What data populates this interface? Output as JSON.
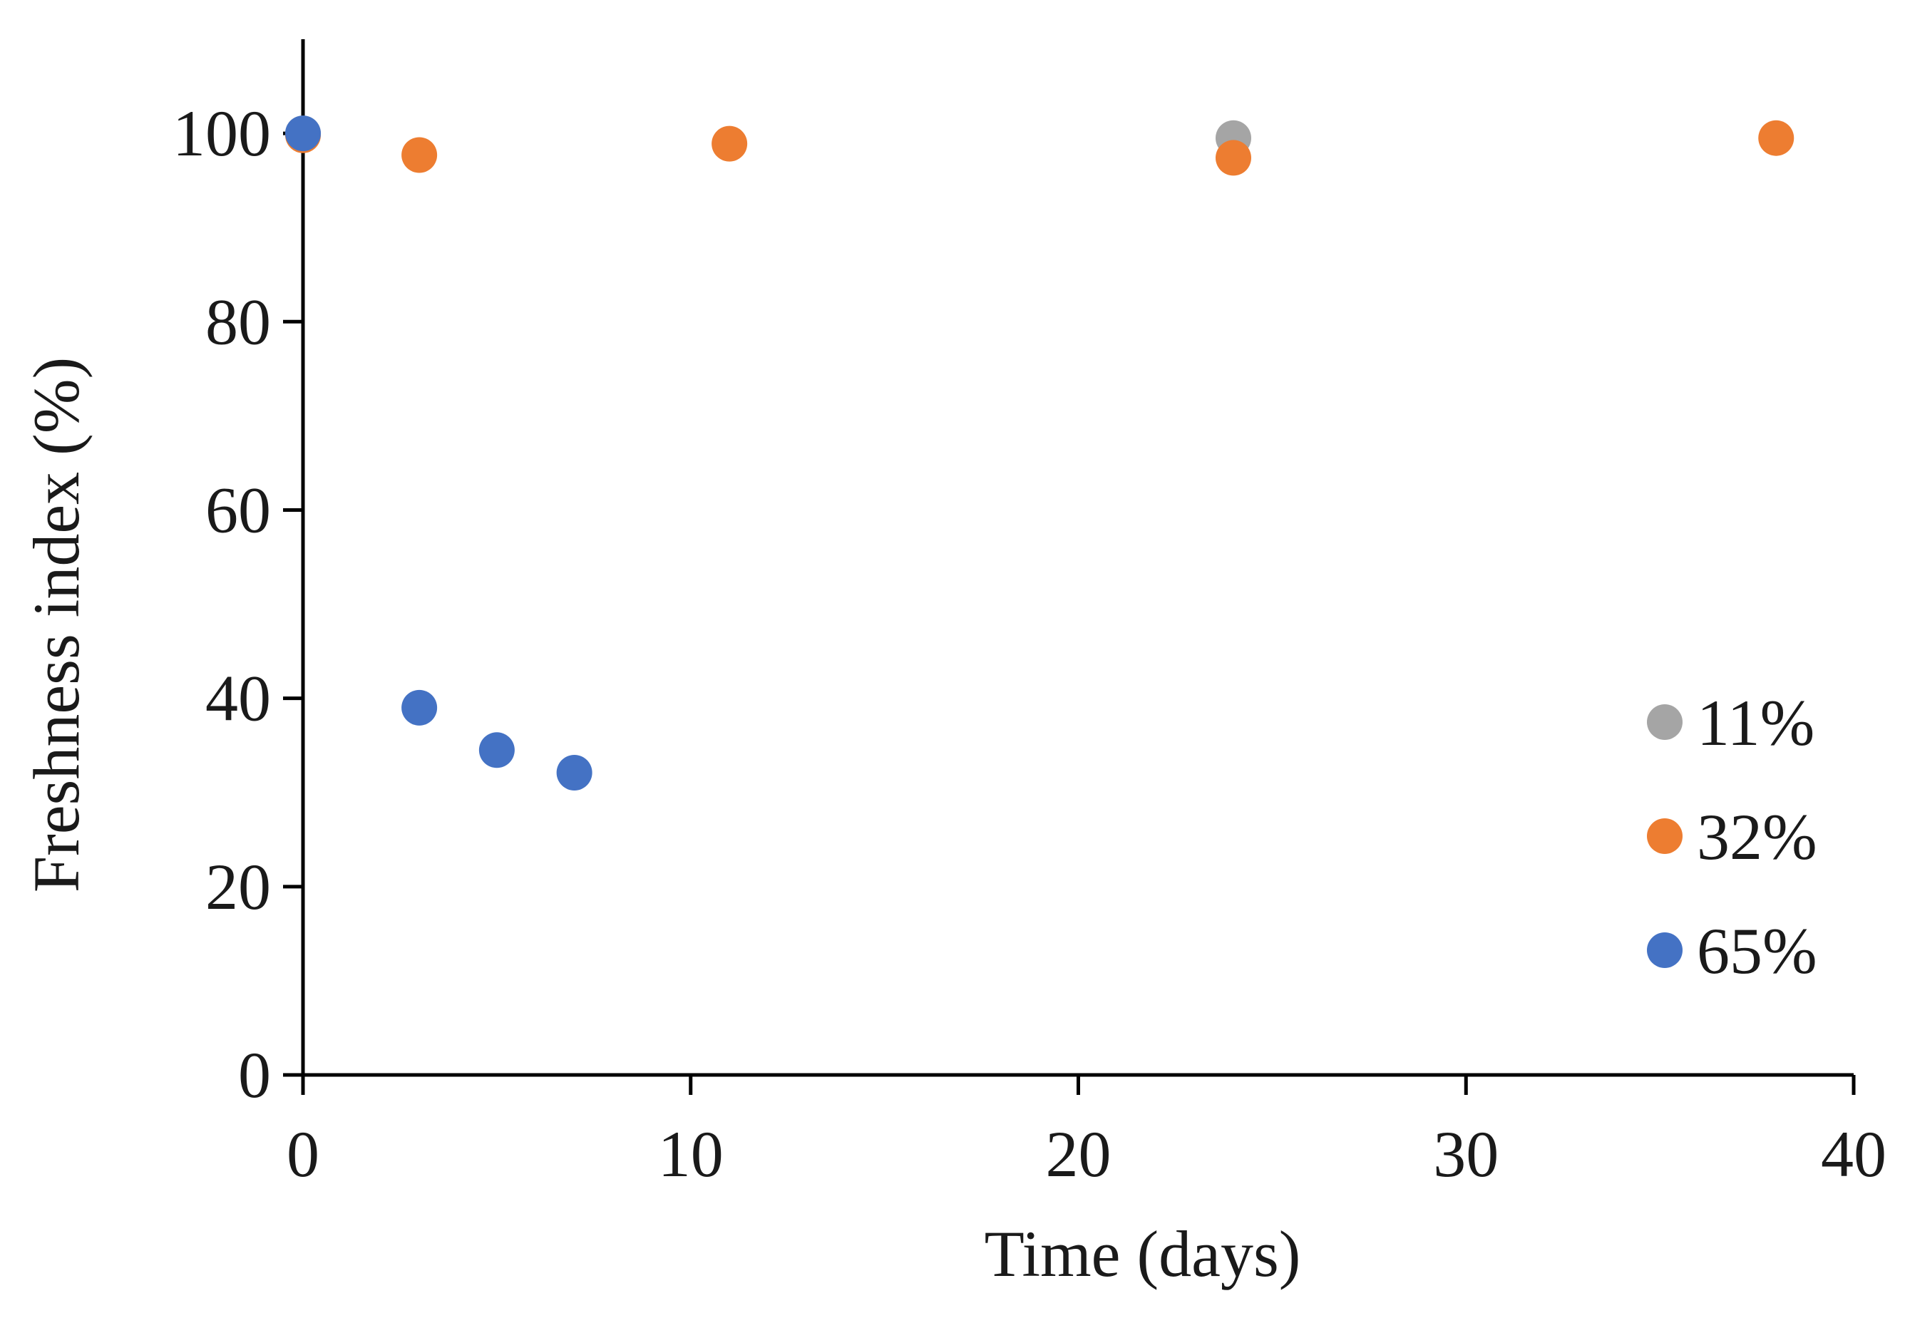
{
  "chart_data": {
    "type": "scatter",
    "xlabel": "Time (days)",
    "ylabel": "Freshness index (%)",
    "xlim": [
      0,
      40
    ],
    "ylim": [
      0,
      110
    ],
    "xticks": [
      0,
      10,
      20,
      30,
      40
    ],
    "yticks": [
      0,
      20,
      40,
      60,
      80,
      100
    ],
    "grid": false,
    "legend_position": "right",
    "series": [
      {
        "name": "11%",
        "color": "#A5A5A5",
        "x": [
          0,
          24
        ],
        "y": [
          100,
          99.5
        ]
      },
      {
        "name": "32%",
        "color": "#ED7D31",
        "x": [
          0,
          3,
          11,
          24,
          38
        ],
        "y": [
          99.8,
          97.7,
          98.9,
          97.4,
          99.5
        ]
      },
      {
        "name": "65%",
        "color": "#4472C4",
        "x": [
          0,
          3,
          5,
          7
        ],
        "y": [
          100,
          39,
          34.5,
          32.1
        ]
      }
    ]
  }
}
